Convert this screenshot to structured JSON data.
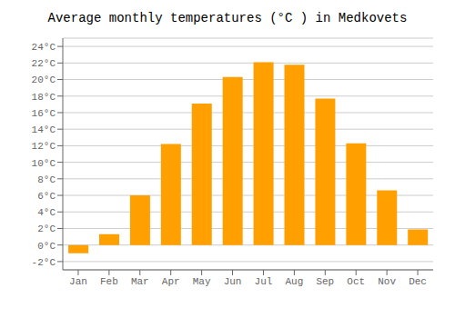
{
  "chart_data": {
    "type": "bar",
    "title": "Average monthly temperatures (°C ) in Medkovets",
    "categories": [
      "Jan",
      "Feb",
      "Mar",
      "Apr",
      "May",
      "Jun",
      "Jul",
      "Aug",
      "Sep",
      "Oct",
      "Nov",
      "Dec"
    ],
    "values": [
      -1.0,
      1.3,
      6.0,
      12.2,
      17.1,
      20.3,
      22.1,
      21.8,
      17.7,
      12.3,
      6.6,
      1.9
    ],
    "color": "#FFA000",
    "ylim": [
      -3,
      25
    ],
    "yticks": [
      {
        "value": -2,
        "label": "-2°C"
      },
      {
        "value": 0,
        "label": "0°C"
      },
      {
        "value": 2,
        "label": "2°C"
      },
      {
        "value": 4,
        "label": "4°C"
      },
      {
        "value": 6,
        "label": "6°C"
      },
      {
        "value": 8,
        "label": "8°C"
      },
      {
        "value": 10,
        "label": "10°C"
      },
      {
        "value": 12,
        "label": "12°C"
      },
      {
        "value": 14,
        "label": "14°C"
      },
      {
        "value": 16,
        "label": "16°C"
      },
      {
        "value": 18,
        "label": "18°C"
      },
      {
        "value": 20,
        "label": "20°C"
      },
      {
        "value": 22,
        "label": "22°C"
      },
      {
        "value": 24,
        "label": "24°C"
      }
    ],
    "grid": true
  }
}
